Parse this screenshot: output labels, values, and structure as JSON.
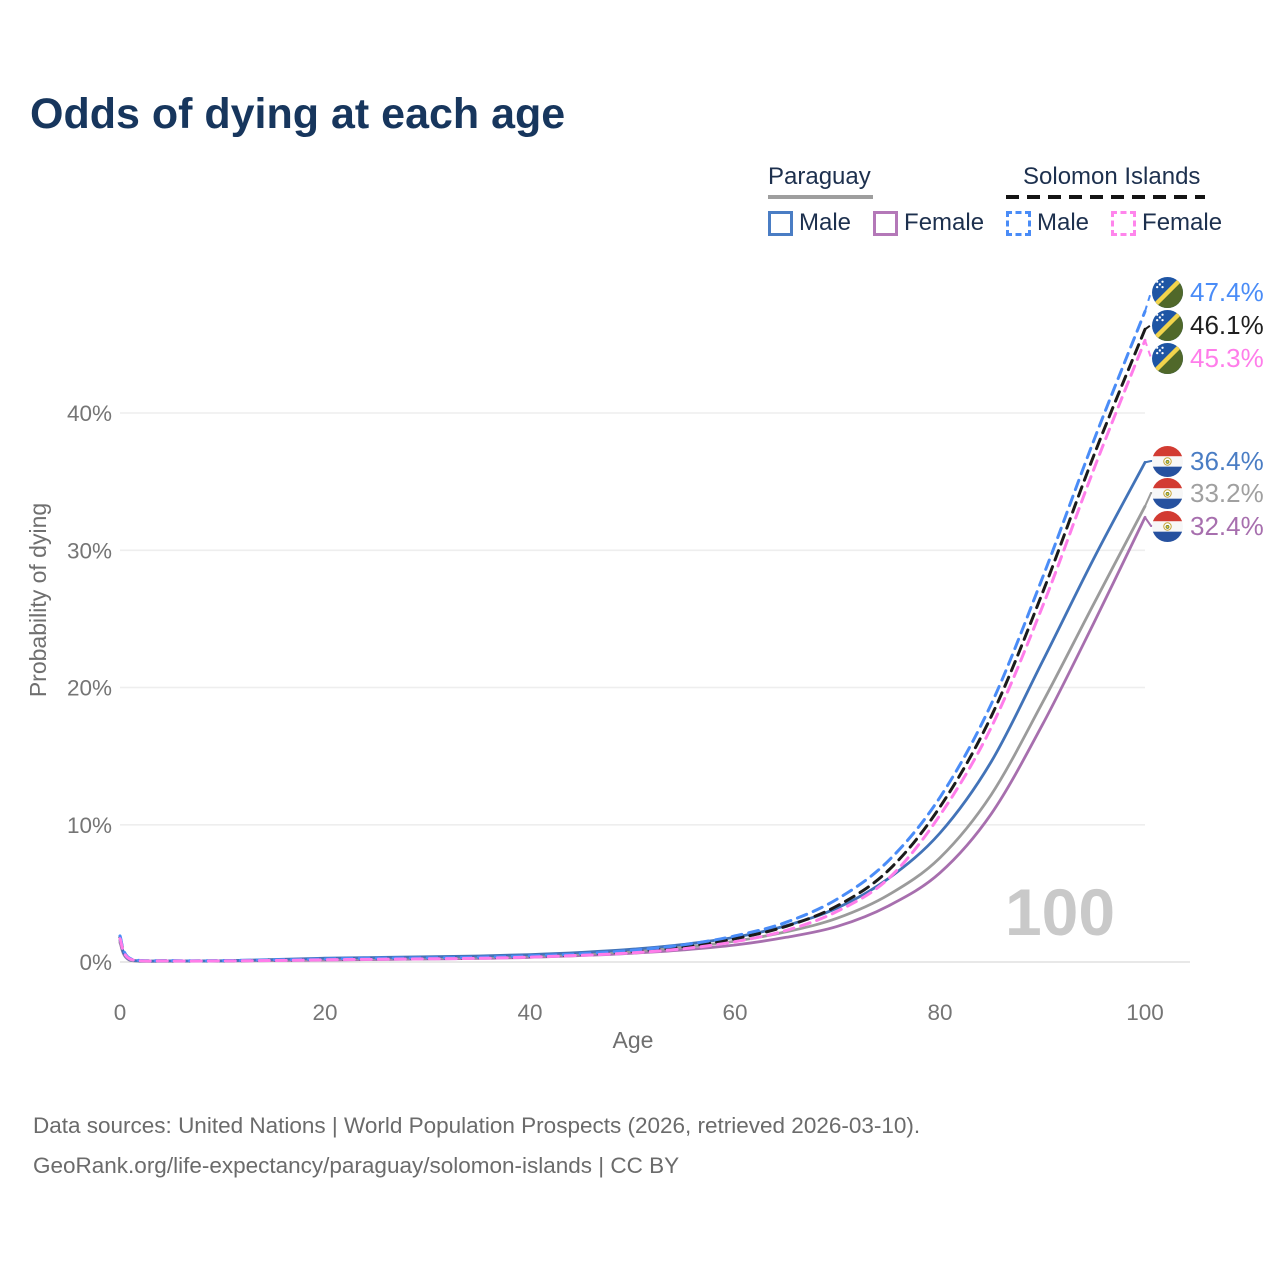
{
  "title": "Odds of dying at each age",
  "legend": {
    "groups": [
      {
        "title": "Paraguay",
        "line_style": "solid",
        "underline_color": "#9e9e9e",
        "items": [
          {
            "label": "Male",
            "color": "#4a7dc4",
            "dashed": false
          },
          {
            "label": "Female",
            "color": "#b478b8",
            "dashed": false
          }
        ]
      },
      {
        "title": "Solomon Islands",
        "line_style": "dashed",
        "underline_color": "#141414",
        "items": [
          {
            "label": "Male",
            "color": "#4a8cf7",
            "dashed": true
          },
          {
            "label": "Female",
            "color": "#ff85ec",
            "dashed": true
          }
        ]
      }
    ]
  },
  "watermark": "100",
  "footer": {
    "line1": "Data sources: United Nations | World Population Prospects (2026, retrieved 2026-03-10).",
    "line2": "GeoRank.org/life-expectancy/paraguay/solomon-islands | CC BY"
  },
  "chart_data": {
    "type": "line",
    "title": "Odds of dying at each age",
    "xlabel": "Age",
    "ylabel": "Probability of dying",
    "xlim": [
      0,
      100
    ],
    "ylim": [
      0,
      50
    ],
    "grid": "horizontal",
    "legend_position": "top-right",
    "x_ticks": [
      0,
      20,
      40,
      60,
      80,
      100
    ],
    "y_ticks": [
      {
        "v": 0,
        "label": "0%"
      },
      {
        "v": 10,
        "label": "10%"
      },
      {
        "v": 20,
        "label": "20%"
      },
      {
        "v": 30,
        "label": "30%"
      },
      {
        "v": 40,
        "label": "40%"
      }
    ],
    "x": [
      0,
      1,
      5,
      10,
      15,
      20,
      25,
      30,
      35,
      40,
      45,
      50,
      55,
      60,
      65,
      70,
      75,
      80,
      85,
      90,
      95,
      100
    ],
    "series": [
      {
        "name": "Solomon Islands Male",
        "flag": "solomon-islands",
        "color": "#4a8cf7",
        "label_color": "#4a8cf7",
        "dashed": true,
        "end_label": "47.4%",
        "end_value": 47.4,
        "values": [
          1.9,
          0.25,
          0.1,
          0.1,
          0.15,
          0.22,
          0.28,
          0.3,
          0.35,
          0.45,
          0.6,
          0.85,
          1.25,
          1.9,
          2.9,
          4.6,
          7.4,
          12.0,
          18.8,
          28.0,
          38.0,
          47.4
        ]
      },
      {
        "name": "Solomon Islands Total",
        "flag": "solomon-islands",
        "color": "#1b1b1b",
        "label_color": "#1f1f1f",
        "dashed": true,
        "end_label": "46.1%",
        "end_value": 46.1,
        "values": [
          1.8,
          0.22,
          0.09,
          0.09,
          0.13,
          0.19,
          0.24,
          0.27,
          0.31,
          0.4,
          0.55,
          0.76,
          1.1,
          1.7,
          2.6,
          4.1,
          6.7,
          11.3,
          17.9,
          26.9,
          36.9,
          46.1
        ]
      },
      {
        "name": "Solomon Islands Female",
        "flag": "solomon-islands",
        "color": "#ff7dea",
        "label_color": "#ff7dea",
        "dashed": true,
        "end_label": "45.3%",
        "end_value": 45.3,
        "values": [
          1.7,
          0.2,
          0.08,
          0.08,
          0.11,
          0.16,
          0.2,
          0.23,
          0.27,
          0.36,
          0.49,
          0.67,
          0.97,
          1.48,
          2.3,
          3.7,
          6.1,
          10.7,
          17.1,
          25.9,
          35.9,
          45.3
        ]
      },
      {
        "name": "Paraguay Male",
        "flag": "paraguay",
        "color": "#4273b8",
        "label_color": "#4a7dc4",
        "dashed": false,
        "end_label": "36.4%",
        "end_value": 36.4,
        "values": [
          1.6,
          0.15,
          0.08,
          0.09,
          0.18,
          0.28,
          0.33,
          0.38,
          0.44,
          0.54,
          0.7,
          0.93,
          1.28,
          1.8,
          2.65,
          3.95,
          6.1,
          9.4,
          14.6,
          21.9,
          29.4,
          36.4
        ]
      },
      {
        "name": "Paraguay Total",
        "flag": "paraguay",
        "color": "#9b9b9b",
        "label_color": "#a0a0a0",
        "dashed": false,
        "end_label": "33.2%",
        "end_value": 33.2,
        "values": [
          1.5,
          0.13,
          0.07,
          0.08,
          0.14,
          0.21,
          0.26,
          0.3,
          0.35,
          0.44,
          0.58,
          0.78,
          1.08,
          1.52,
          2.2,
          3.2,
          4.9,
          7.6,
          12.2,
          18.9,
          26.1,
          33.2
        ]
      },
      {
        "name": "Paraguay Female",
        "flag": "paraguay",
        "color": "#a76fae",
        "label_color": "#a76fae",
        "dashed": false,
        "end_label": "32.4%",
        "end_value": 32.4,
        "values": [
          1.4,
          0.12,
          0.06,
          0.07,
          0.1,
          0.14,
          0.18,
          0.22,
          0.26,
          0.34,
          0.47,
          0.64,
          0.88,
          1.24,
          1.8,
          2.6,
          4.1,
          6.5,
          10.8,
          17.3,
          24.7,
          32.4
        ]
      }
    ]
  }
}
